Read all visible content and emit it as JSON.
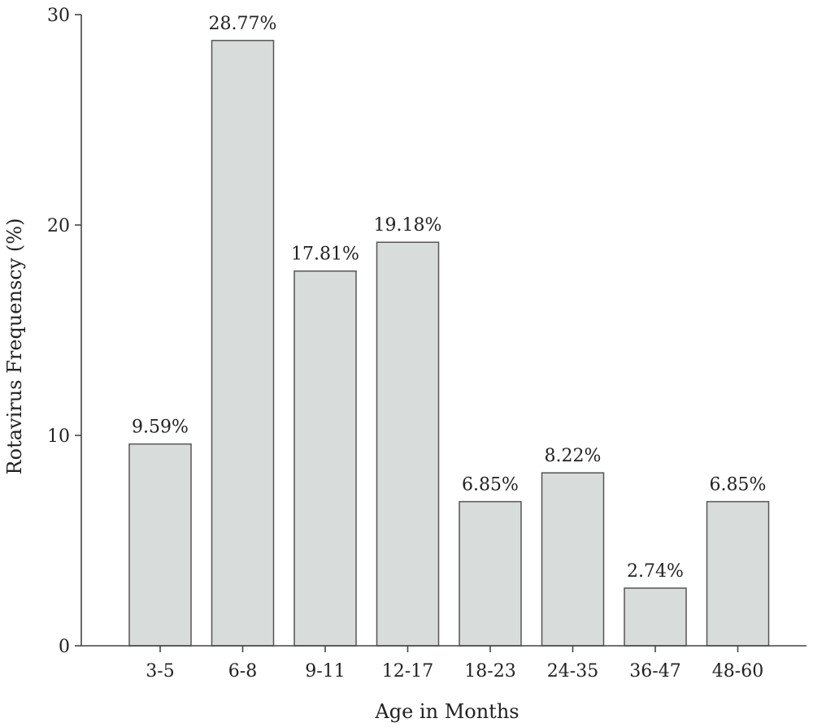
{
  "chart_data": {
    "type": "bar",
    "title": "",
    "xlabel": "Age in Months",
    "ylabel": "Rotavirus Frequenscy (%)",
    "categories": [
      "3-5",
      "6-8",
      "9-11",
      "12-17",
      "18-23",
      "24-35",
      "36-47",
      "48-60"
    ],
    "values": [
      9.59,
      28.77,
      17.81,
      19.18,
      6.85,
      8.22,
      2.74,
      6.85
    ],
    "data_labels": [
      "9.59%",
      "28.77%",
      "17.81%",
      "19.18%",
      "6.85%",
      "8.22%",
      "2.74%",
      "6.85%"
    ],
    "ylim": [
      0,
      30
    ],
    "yticks": [
      0,
      10,
      20,
      30
    ],
    "grid": false,
    "legend": "none",
    "bar_color": "#d8dcda",
    "bar_edge_color": "#555555"
  }
}
